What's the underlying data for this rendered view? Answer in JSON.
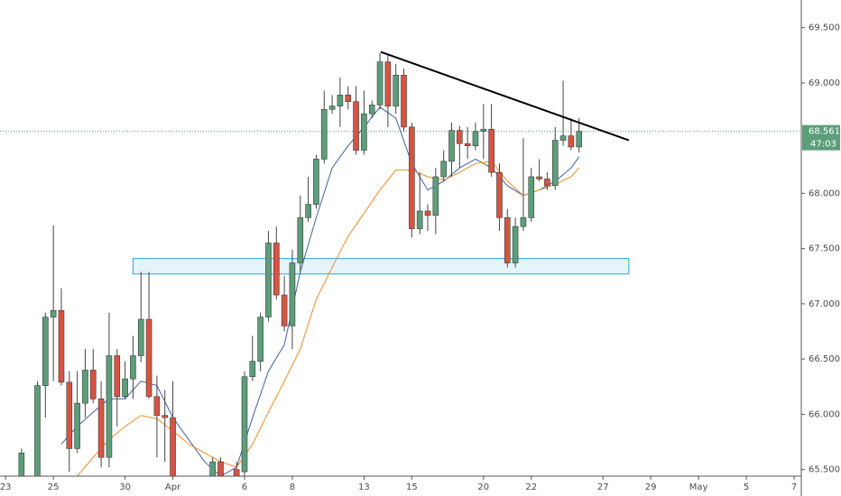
{
  "chart_data": {
    "type": "candlestick",
    "x": [
      2,
      4,
      5,
      6,
      7,
      8,
      9,
      10,
      11,
      12,
      13,
      14,
      15,
      16,
      17,
      18,
      19,
      20,
      21,
      26,
      27,
      29,
      30,
      31,
      32,
      33,
      34,
      35,
      36,
      37,
      38,
      39,
      40,
      41,
      42,
      43,
      44,
      45,
      46,
      47,
      48,
      49,
      50,
      51,
      52,
      53,
      54,
      55,
      56,
      57,
      58,
      59,
      60,
      61,
      62,
      63,
      64,
      65,
      66,
      67,
      68,
      69,
      70,
      71,
      72
    ],
    "open": [
      65.44,
      65.44,
      66.26,
      66.88,
      66.94,
      66.29,
      65.69,
      66.1,
      66.4,
      66.14,
      65.61,
      66.53,
      66.16,
      66.32,
      66.53,
      66.86,
      66.16,
      65.99,
      65.97,
      65.42,
      65.57,
      65.5,
      65.48,
      66.34,
      66.48,
      66.88,
      67.55,
      67.08,
      66.8,
      67.37,
      67.78,
      67.9,
      68.31,
      68.76,
      68.79,
      68.89,
      68.83,
      68.39,
      68.72,
      68.8,
      69.19,
      68.79,
      69.07,
      68.6,
      67.68,
      67.84,
      67.8,
      68.15,
      68.29,
      68.57,
      68.45,
      68.43,
      68.56,
      68.58,
      68.19,
      67.78,
      67.37,
      67.7,
      67.78,
      68.15,
      68.13,
      68.07,
      68.48,
      68.52,
      68.42
    ],
    "high": [
      65.69,
      66.3,
      66.92,
      67.71,
      67.14,
      66.39,
      66.39,
      66.59,
      66.59,
      66.3,
      66.92,
      66.59,
      66.48,
      66.71,
      67.29,
      67.29,
      66.35,
      66.22,
      66.3,
      65.61,
      65.61,
      65.57,
      66.39,
      66.71,
      66.92,
      67.66,
      67.7,
      67.25,
      67.49,
      67.98,
      68.15,
      68.35,
      68.93,
      68.89,
      69.05,
      68.97,
      68.97,
      68.93,
      68.84,
      69.27,
      69.25,
      69.17,
      69.13,
      68.64,
      68.19,
      67.9,
      68.23,
      68.39,
      68.64,
      68.61,
      68.6,
      68.64,
      68.81,
      68.81,
      68.27,
      67.86,
      67.78,
      68.5,
      68.23,
      68.31,
      68.19,
      68.6,
      69.02,
      68.68,
      68.68
    ],
    "low": [
      65.4,
      65.44,
      65.97,
      66.3,
      66.26,
      65.48,
      65.65,
      65.97,
      66.1,
      65.52,
      65.52,
      65.89,
      66.14,
      66.14,
      66.47,
      66.14,
      65.61,
      65.57,
      65.32,
      65.36,
      65.32,
      65.4,
      65.44,
      66.3,
      66.39,
      66.84,
      67.04,
      66.75,
      66.59,
      67.29,
      67.74,
      67.86,
      68.27,
      68.72,
      68.6,
      68.76,
      68.35,
      68.35,
      68.68,
      68.76,
      68.6,
      68.72,
      68.56,
      67.6,
      67.63,
      67.66,
      67.63,
      68.11,
      68.15,
      68.23,
      68.31,
      68.39,
      68.31,
      68.15,
      67.66,
      67.33,
      67.33,
      67.66,
      67.74,
      68.11,
      68.03,
      68.03,
      68.43,
      68.39,
      68.37
    ],
    "close": [
      65.65,
      66.26,
      66.88,
      66.94,
      66.29,
      65.69,
      66.1,
      66.4,
      66.14,
      65.61,
      66.53,
      66.16,
      66.32,
      66.53,
      66.86,
      66.16,
      65.99,
      65.97,
      65.36,
      65.57,
      65.42,
      65.44,
      66.34,
      66.48,
      66.88,
      67.55,
      67.08,
      66.8,
      67.37,
      67.78,
      67.9,
      68.31,
      68.76,
      68.79,
      68.89,
      68.83,
      68.39,
      68.72,
      68.8,
      69.19,
      68.79,
      69.07,
      68.6,
      67.68,
      67.84,
      67.8,
      68.15,
      68.29,
      68.57,
      68.45,
      68.43,
      68.56,
      68.58,
      68.19,
      67.78,
      67.37,
      67.7,
      67.78,
      68.15,
      68.13,
      68.07,
      68.48,
      68.52,
      68.42,
      68.561
    ],
    "up_color": "#5c9e7a",
    "down_color": "#d75442",
    "lines": [
      {
        "color": "#3f5fa0",
        "x": [
          7,
          9,
          11,
          13,
          15,
          17,
          19,
          21,
          23,
          25,
          27,
          29,
          31,
          33,
          35,
          37,
          39,
          41,
          43,
          45,
          47,
          49,
          51,
          53,
          55,
          57,
          59,
          61,
          63,
          65,
          67,
          69,
          71,
          72
        ],
        "values": [
          65.73,
          65.89,
          66.02,
          66.14,
          66.14,
          66.3,
          66.26,
          65.97,
          65.77,
          65.57,
          65.44,
          65.52,
          65.97,
          66.39,
          66.63,
          67.29,
          67.78,
          68.23,
          68.43,
          68.6,
          68.78,
          68.68,
          68.27,
          68.03,
          68.11,
          68.23,
          68.31,
          68.23,
          68.07,
          67.98,
          68.03,
          68.11,
          68.23,
          68.33
        ]
      },
      {
        "color": "#f08a24",
        "x": [
          9,
          11,
          13,
          15,
          17,
          19,
          21,
          23,
          25,
          27,
          29,
          31,
          33,
          35,
          37,
          39,
          41,
          43,
          45,
          47,
          49,
          51,
          53,
          55,
          57,
          59,
          61,
          63,
          65,
          67,
          69,
          71,
          72
        ],
        "values": [
          65.44,
          65.61,
          65.77,
          65.89,
          65.99,
          65.96,
          65.85,
          65.73,
          65.65,
          65.57,
          65.52,
          65.73,
          66.02,
          66.3,
          66.59,
          67.04,
          67.33,
          67.61,
          67.82,
          68.03,
          68.21,
          68.21,
          68.15,
          68.12,
          68.19,
          68.27,
          68.29,
          68.11,
          67.98,
          68.03,
          68.08,
          68.15,
          68.23
        ]
      }
    ],
    "trendline": {
      "color": "#000000",
      "x": [
        47.1,
        78.25
      ],
      "y": [
        69.28,
        68.48
      ]
    },
    "zone": {
      "color": "#29a3d6",
      "x": [
        16,
        78.25
      ],
      "y": [
        67.27,
        67.41
      ]
    },
    "last_price": 68.561,
    "countdown": "47:03",
    "xlim": [
      -0.7,
      99.9
    ],
    "ylim": [
      65.44,
      69.75
    ],
    "xticks": [
      {
        "value": 0,
        "label": "23"
      },
      {
        "value": 6,
        "label": "25"
      },
      {
        "value": 15,
        "label": "30"
      },
      {
        "value": 21,
        "label": "Apr"
      },
      {
        "value": 30,
        "label": "6"
      },
      {
        "value": 36,
        "label": "8"
      },
      {
        "value": 45,
        "label": "13"
      },
      {
        "value": 51,
        "label": "15"
      },
      {
        "value": 60,
        "label": "20"
      },
      {
        "value": 66,
        "label": "22"
      },
      {
        "value": 75,
        "label": "27"
      },
      {
        "value": 81,
        "label": "29"
      },
      {
        "value": 87,
        "label": "May"
      },
      {
        "value": 93,
        "label": "5"
      },
      {
        "value": 99,
        "label": "7"
      }
    ],
    "yticks": [
      {
        "value": 65.5,
        "label": "65.500"
      },
      {
        "value": 66,
        "label": "66.000"
      },
      {
        "value": 66.5,
        "label": "66.500"
      },
      {
        "value": 67,
        "label": "67.000"
      },
      {
        "value": 67.5,
        "label": "67.500"
      },
      {
        "value": 68,
        "label": "68.000"
      },
      {
        "value": 69,
        "label": "69.000"
      },
      {
        "value": 69.5,
        "label": "69.500"
      }
    ]
  }
}
